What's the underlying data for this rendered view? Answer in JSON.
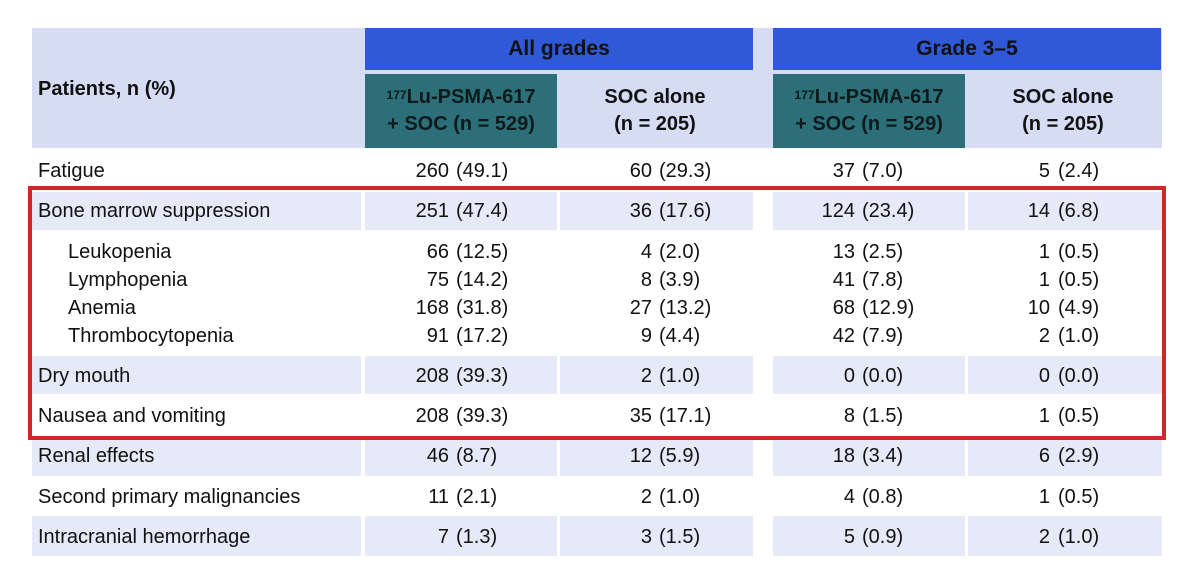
{
  "header": {
    "row_label": "Patients, n (%)",
    "group_all": "All grades",
    "group_g35": "Grade 3–5",
    "col_lu_sup": "177",
    "col_lu_line1": "Lu-PSMA-617",
    "col_lu_line2": "+ SOC (n = 529)",
    "col_soc_line1": "SOC alone",
    "col_soc_line2": "(n = 205)"
  },
  "rows": [
    {
      "label": "Fatigue",
      "sub": false,
      "v": [
        [
          "260",
          "(49.1)"
        ],
        [
          "60",
          "(29.3)"
        ],
        [
          "37",
          "(7.0)"
        ],
        [
          "5",
          "(2.4)"
        ]
      ]
    },
    {
      "label": "Bone marrow suppression",
      "sub": false,
      "v": [
        [
          "251",
          "(47.4)"
        ],
        [
          "36",
          "(17.6)"
        ],
        [
          "124",
          "(23.4)"
        ],
        [
          "14",
          "(6.8)"
        ]
      ]
    },
    {
      "label": "Leukopenia",
      "sub": true,
      "v": [
        [
          "66",
          "(12.5)"
        ],
        [
          "4",
          "(2.0)"
        ],
        [
          "13",
          "(2.5)"
        ],
        [
          "1",
          "(0.5)"
        ]
      ]
    },
    {
      "label": "Lymphopenia",
      "sub": true,
      "v": [
        [
          "75",
          "(14.2)"
        ],
        [
          "8",
          "(3.9)"
        ],
        [
          "41",
          "(7.8)"
        ],
        [
          "1",
          "(0.5)"
        ]
      ]
    },
    {
      "label": "Anemia",
      "sub": true,
      "v": [
        [
          "168",
          "(31.8)"
        ],
        [
          "27",
          "(13.2)"
        ],
        [
          "68",
          "(12.9)"
        ],
        [
          "10",
          "(4.9)"
        ]
      ]
    },
    {
      "label": "Thrombocytopenia",
      "sub": true,
      "v": [
        [
          "91",
          "(17.2)"
        ],
        [
          "9",
          "(4.4)"
        ],
        [
          "42",
          "(7.9)"
        ],
        [
          "2",
          "(1.0)"
        ]
      ]
    },
    {
      "label": "Dry mouth",
      "sub": false,
      "v": [
        [
          "208",
          "(39.3)"
        ],
        [
          "2",
          "(1.0)"
        ],
        [
          "0",
          "(0.0)"
        ],
        [
          "0",
          "(0.0)"
        ]
      ]
    },
    {
      "label": "Nausea and vomiting",
      "sub": false,
      "v": [
        [
          "208",
          "(39.3)"
        ],
        [
          "35",
          "(17.1)"
        ],
        [
          "8",
          "(1.5)"
        ],
        [
          "1",
          "(0.5)"
        ]
      ]
    },
    {
      "label": "Renal effects",
      "sub": false,
      "v": [
        [
          "46",
          "(8.7)"
        ],
        [
          "12",
          "(5.9)"
        ],
        [
          "18",
          "(3.4)"
        ],
        [
          "6",
          "(2.9)"
        ]
      ]
    },
    {
      "label": "Second primary malignancies",
      "sub": false,
      "v": [
        [
          "11",
          "(2.1)"
        ],
        [
          "2",
          "(1.0)"
        ],
        [
          "4",
          "(0.8)"
        ],
        [
          "1",
          "(0.5)"
        ]
      ]
    },
    {
      "label": "Intracranial hemorrhage",
      "sub": false,
      "v": [
        [
          "7",
          "(1.3)"
        ],
        [
          "3",
          "(1.5)"
        ],
        [
          "5",
          "(0.9)"
        ],
        [
          "2",
          "(1.0)"
        ]
      ]
    }
  ],
  "colors": {
    "header_blue": "#2f59d6",
    "header_teal": "#2d6f78",
    "band_light": "#e6e9f8",
    "highlight": "#cc2a2a"
  }
}
